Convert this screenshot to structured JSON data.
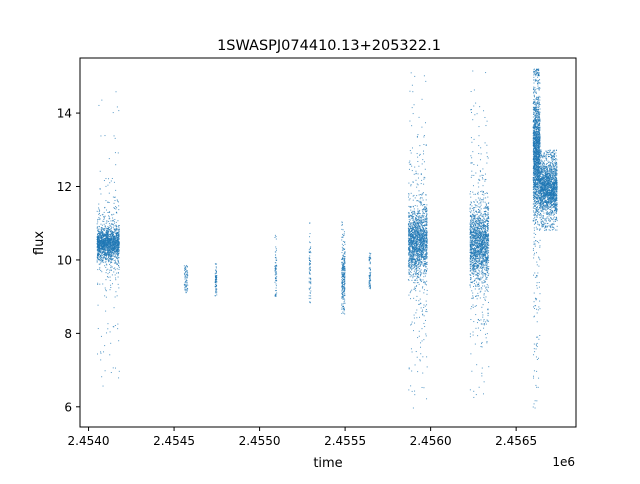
{
  "chart_data": {
    "type": "scatter",
    "title": "1SWASPJ074410.13+205322.1",
    "xlabel": "time",
    "ylabel": "flux",
    "x_offset_label": "1e6",
    "xlim": [
      2.45395,
      2.45685
    ],
    "ylim": [
      5.45,
      15.5
    ],
    "x_ticks": [
      2.454,
      2.4545,
      2.455,
      2.4555,
      2.456,
      2.4565
    ],
    "x_tick_labels": [
      "2.4540",
      "2.4545",
      "2.4550",
      "2.4555",
      "2.4560",
      "2.4565"
    ],
    "y_ticks": [
      6,
      8,
      10,
      12,
      14
    ],
    "y_tick_labels": [
      "6",
      "8",
      "10",
      "12",
      "14"
    ],
    "grid": false,
    "legend": "none",
    "marker_color": "#1f77b4",
    "clusters": [
      {
        "x_min": 2.45405,
        "x_max": 2.45418,
        "center": 10.45,
        "spread": 0.22,
        "y_min": 6.55,
        "y_max": 14.7,
        "density": "high"
      },
      {
        "x_min": 2.45456,
        "x_max": 2.45458,
        "center": 9.5,
        "spread": 0.2,
        "y_min": 9.1,
        "y_max": 9.85,
        "density": "low"
      },
      {
        "x_min": 2.45474,
        "x_max": 2.45475,
        "center": 9.4,
        "spread": 0.2,
        "y_min": 8.95,
        "y_max": 9.9,
        "density": "low"
      },
      {
        "x_min": 2.45509,
        "x_max": 2.4551,
        "center": 9.7,
        "spread": 0.35,
        "y_min": 9.0,
        "y_max": 10.75,
        "density": "low"
      },
      {
        "x_min": 2.45529,
        "x_max": 2.4553,
        "center": 9.8,
        "spread": 0.45,
        "y_min": 8.8,
        "y_max": 11.1,
        "density": "low"
      },
      {
        "x_min": 2.45548,
        "x_max": 2.4555,
        "center": 9.6,
        "spread": 0.45,
        "y_min": 8.5,
        "y_max": 11.15,
        "density": "medium"
      },
      {
        "x_min": 2.45564,
        "x_max": 2.45565,
        "center": 9.6,
        "spread": 0.3,
        "y_min": 9.2,
        "y_max": 10.2,
        "density": "low"
      },
      {
        "x_min": 2.45587,
        "x_max": 2.45598,
        "center": 10.5,
        "spread": 0.45,
        "y_min": 5.95,
        "y_max": 15.15,
        "density": "high"
      },
      {
        "x_min": 2.45623,
        "x_max": 2.45634,
        "center": 10.45,
        "spread": 0.5,
        "y_min": 5.95,
        "y_max": 15.2,
        "density": "high"
      },
      {
        "x_min": 2.4566,
        "x_max": 2.45664,
        "center": 12.9,
        "spread": 0.8,
        "y_min": 5.95,
        "y_max": 15.2,
        "density": "high"
      },
      {
        "x_min": 2.45664,
        "x_max": 2.45674,
        "center": 11.95,
        "spread": 0.35,
        "y_min": 10.8,
        "y_max": 13.0,
        "density": "high"
      }
    ]
  }
}
